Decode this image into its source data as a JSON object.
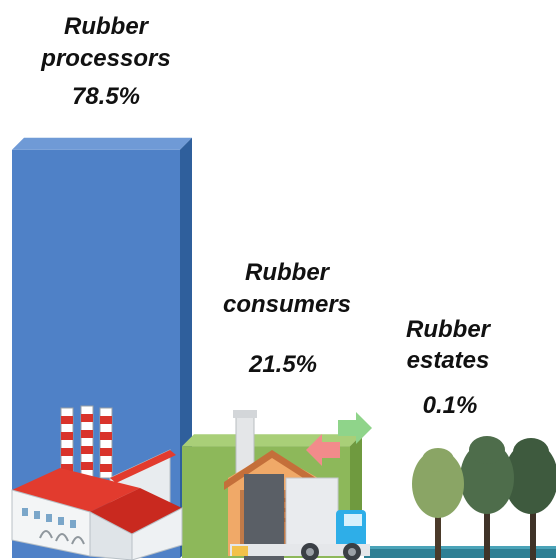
{
  "chart_data": {
    "type": "bar",
    "categories": [
      "Rubber processors",
      "Rubber consumers",
      "Rubber estates"
    ],
    "label_lines": [
      [
        "Rubber",
        "processors"
      ],
      [
        "Rubber",
        "consumers"
      ],
      [
        "Rubber",
        "estates"
      ]
    ],
    "values": [
      78.5,
      21.5,
      0.1
    ],
    "value_labels": [
      "78.5%",
      "21.5%",
      "0.1%"
    ],
    "unit": "%",
    "ylim": [
      0,
      100
    ],
    "grid": false,
    "legend": "none",
    "title": "",
    "xlabel": "",
    "ylabel": "",
    "colors": {
      "processors_bar": "#4f81c7",
      "consumers_bar": "#8db85a",
      "estates_bar": "#2e7f94"
    },
    "icons": [
      "factory-icon",
      "warehouse-truck-icon",
      "trees-icon"
    ]
  }
}
